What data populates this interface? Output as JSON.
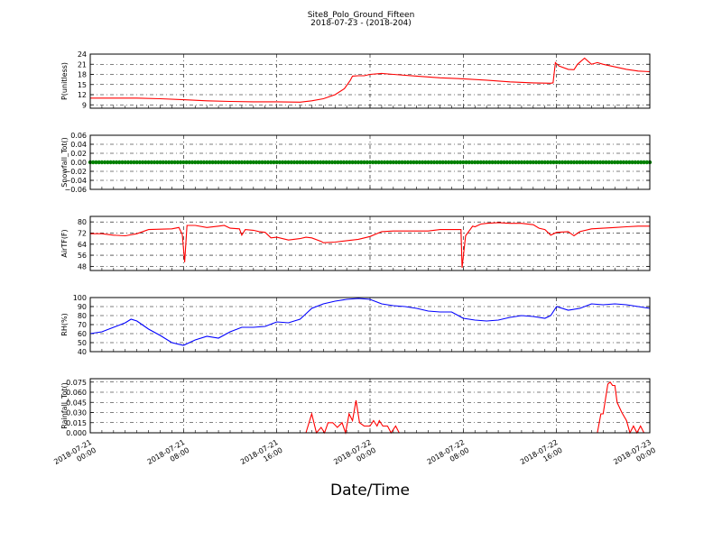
{
  "chart_data": {
    "title": "Site8_Polo_Ground_Fifteen",
    "subtitle": "2018-07-23 - (2018-204)",
    "xlabel": "Date/Time",
    "x_ticks": [
      {
        "h": 0,
        "label": [
          "2018-07-21",
          "00:00"
        ]
      },
      {
        "h": 8,
        "label": [
          "2018-07-21",
          "08:00"
        ]
      },
      {
        "h": 16,
        "label": [
          "2018-07-21",
          "16:00"
        ]
      },
      {
        "h": 24,
        "label": [
          "2018-07-22",
          "00:00"
        ]
      },
      {
        "h": 32,
        "label": [
          "2018-07-22",
          "08:00"
        ]
      },
      {
        "h": 40,
        "label": [
          "2018-07-22",
          "16:00"
        ]
      },
      {
        "h": 48,
        "label": [
          "2018-07-23",
          "00:00"
        ]
      }
    ],
    "x_range_hours": [
      0,
      48
    ],
    "grid": true,
    "panels": [
      {
        "type": "line",
        "ylabel": "P(unitless)",
        "color": "#ff0000",
        "ylim": [
          8,
          24
        ],
        "yticks": [
          9,
          12,
          15,
          18,
          21,
          24
        ],
        "points": [
          [
            0,
            11.0
          ],
          [
            2,
            11.0
          ],
          [
            4,
            11.0
          ],
          [
            6,
            10.8
          ],
          [
            8,
            10.5
          ],
          [
            10,
            10.2
          ],
          [
            12,
            10.0
          ],
          [
            14,
            9.9
          ],
          [
            16,
            9.9
          ],
          [
            18,
            9.8
          ],
          [
            19,
            10.2
          ],
          [
            20,
            10.8
          ],
          [
            21,
            12.0
          ],
          [
            21.8,
            13.8
          ],
          [
            22.3,
            16.2
          ],
          [
            22.5,
            17.5
          ],
          [
            23,
            17.6
          ],
          [
            23.5,
            17.6
          ],
          [
            24,
            18.0
          ],
          [
            25,
            18.3
          ],
          [
            26,
            18.0
          ],
          [
            28,
            17.5
          ],
          [
            30,
            17.0
          ],
          [
            32,
            16.7
          ],
          [
            34,
            16.3
          ],
          [
            36,
            15.8
          ],
          [
            38,
            15.5
          ],
          [
            39.5,
            15.4
          ],
          [
            39.7,
            15.5
          ],
          [
            39.9,
            21.5
          ],
          [
            40.2,
            20.5
          ],
          [
            41,
            19.5
          ],
          [
            41.5,
            19.4
          ],
          [
            41.8,
            21.0
          ],
          [
            42.4,
            22.8
          ],
          [
            43,
            21.0
          ],
          [
            43.5,
            21.5
          ],
          [
            44,
            21.0
          ],
          [
            46,
            19.5
          ],
          [
            47,
            19.0
          ],
          [
            48,
            18.8
          ]
        ]
      },
      {
        "type": "markers",
        "ylabel": "Snowfall_Tot()",
        "color": "#008000",
        "ylim": [
          -0.06,
          0.06
        ],
        "yticks": [
          "0.06",
          "0.04",
          "0.02",
          "0.00",
          "−0.02",
          "−0.04",
          "−0.06"
        ],
        "constant_value": 0.0
      },
      {
        "type": "line",
        "ylabel": "AirTF(F)",
        "color": "#ff0000",
        "ylim": [
          45,
          84
        ],
        "yticks": [
          48,
          56,
          64,
          72,
          80
        ],
        "points": [
          [
            0,
            71.5
          ],
          [
            1,
            71.5
          ],
          [
            2,
            70.5
          ],
          [
            3,
            70.0
          ],
          [
            4,
            71.5
          ],
          [
            5,
            74.5
          ],
          [
            6,
            74.8
          ],
          [
            7,
            75.0
          ],
          [
            7.6,
            76.0
          ],
          [
            7.9,
            71.0
          ],
          [
            8.1,
            51.0
          ],
          [
            8.3,
            77.5
          ],
          [
            9,
            77.5
          ],
          [
            10,
            76.0
          ],
          [
            11,
            77.0
          ],
          [
            11.5,
            77.5
          ],
          [
            12,
            75.5
          ],
          [
            12.8,
            75.0
          ],
          [
            13,
            70.5
          ],
          [
            13.3,
            74.5
          ],
          [
            14,
            74.0
          ],
          [
            14.5,
            73.0
          ],
          [
            15,
            72.5
          ],
          [
            15.5,
            68.5
          ],
          [
            16,
            69.0
          ],
          [
            17,
            67.0
          ],
          [
            18,
            68.0
          ],
          [
            18.5,
            69.0
          ],
          [
            19,
            68.5
          ],
          [
            19.8,
            66.0
          ],
          [
            20,
            65.0
          ],
          [
            21,
            65.5
          ],
          [
            22,
            66.5
          ],
          [
            23,
            67.5
          ],
          [
            24,
            69.5
          ],
          [
            25,
            73.0
          ],
          [
            26,
            73.5
          ],
          [
            27,
            73.5
          ],
          [
            28,
            73.5
          ],
          [
            29,
            73.5
          ],
          [
            30,
            74.5
          ],
          [
            31,
            74.5
          ],
          [
            31.8,
            74.5
          ],
          [
            31.9,
            47.0
          ],
          [
            32.2,
            70.0
          ],
          [
            32.8,
            77.0
          ],
          [
            33,
            76.5
          ],
          [
            33.5,
            78.5
          ],
          [
            34,
            79.0
          ],
          [
            35,
            79.5
          ],
          [
            36,
            79.0
          ],
          [
            37,
            79.0
          ],
          [
            38,
            78.0
          ],
          [
            38.5,
            75.5
          ],
          [
            39,
            74.5
          ],
          [
            39.5,
            70.5
          ],
          [
            40,
            72.5
          ],
          [
            41,
            73.0
          ],
          [
            41.5,
            70.0
          ],
          [
            42,
            73.0
          ],
          [
            43,
            75.0
          ],
          [
            44,
            75.5
          ],
          [
            45,
            76.0
          ],
          [
            46,
            76.5
          ],
          [
            47,
            77.0
          ],
          [
            48,
            77.0
          ]
        ]
      },
      {
        "type": "line",
        "ylabel": "RH(%)",
        "color": "#0000ff",
        "ylim": [
          40,
          100
        ],
        "yticks": [
          40,
          50,
          60,
          70,
          80,
          90,
          100
        ],
        "points": [
          [
            0,
            60
          ],
          [
            1,
            62
          ],
          [
            2,
            67
          ],
          [
            3,
            72
          ],
          [
            3.5,
            76
          ],
          [
            4,
            74
          ],
          [
            5,
            65
          ],
          [
            6,
            58
          ],
          [
            7,
            50
          ],
          [
            8,
            47
          ],
          [
            9,
            53
          ],
          [
            10,
            57
          ],
          [
            11,
            55
          ],
          [
            12,
            62
          ],
          [
            13,
            67
          ],
          [
            14,
            67
          ],
          [
            15,
            68
          ],
          [
            16,
            73
          ],
          [
            17,
            72
          ],
          [
            18,
            76
          ],
          [
            18.5,
            82
          ],
          [
            19,
            88
          ],
          [
            20,
            93
          ],
          [
            21,
            96
          ],
          [
            22,
            98
          ],
          [
            23,
            99
          ],
          [
            24,
            98
          ],
          [
            25,
            93
          ],
          [
            26,
            91
          ],
          [
            27,
            90
          ],
          [
            28,
            88
          ],
          [
            29,
            85
          ],
          [
            30,
            84
          ],
          [
            31,
            84
          ],
          [
            32,
            77
          ],
          [
            33,
            75
          ],
          [
            34,
            74
          ],
          [
            35,
            75
          ],
          [
            36,
            78
          ],
          [
            37,
            80
          ],
          [
            38,
            79
          ],
          [
            39,
            77
          ],
          [
            39.5,
            80
          ],
          [
            40,
            90
          ],
          [
            41,
            86
          ],
          [
            42,
            88
          ],
          [
            43,
            93
          ],
          [
            44,
            92
          ],
          [
            45,
            93
          ],
          [
            46,
            92
          ],
          [
            47,
            90
          ],
          [
            48,
            88
          ]
        ]
      },
      {
        "type": "line",
        "ylabel": "Rainfall_Tot()",
        "color": "#ff0000",
        "ylim": [
          0,
          0.08
        ],
        "yticks": [
          "0.000",
          "0.015",
          "0.030",
          "0.045",
          "0.060",
          "0.075"
        ],
        "points": [
          [
            0,
            0
          ],
          [
            18.5,
            0
          ],
          [
            19.0,
            0.028
          ],
          [
            19.4,
            0
          ],
          [
            19.8,
            0.008
          ],
          [
            20.1,
            0
          ],
          [
            20.4,
            0.015
          ],
          [
            20.8,
            0.015
          ],
          [
            21.2,
            0.008
          ],
          [
            21.6,
            0.015
          ],
          [
            21.9,
            0
          ],
          [
            22.2,
            0.028
          ],
          [
            22.5,
            0.018
          ],
          [
            22.8,
            0.048
          ],
          [
            23.1,
            0.015
          ],
          [
            23.5,
            0.01
          ],
          [
            24,
            0.01
          ],
          [
            24.3,
            0.018
          ],
          [
            24.6,
            0.01
          ],
          [
            24.8,
            0.018
          ],
          [
            25.1,
            0.01
          ],
          [
            25.5,
            0.01
          ],
          [
            25.8,
            0
          ],
          [
            26.2,
            0.01
          ],
          [
            26.5,
            0
          ],
          [
            43.5,
            0
          ],
          [
            43.8,
            0.028
          ],
          [
            44,
            0.028
          ],
          [
            44.4,
            0.072
          ],
          [
            44.6,
            0.075
          ],
          [
            44.8,
            0.07
          ],
          [
            45,
            0.07
          ],
          [
            45.2,
            0.045
          ],
          [
            45.6,
            0.03
          ],
          [
            46,
            0.018
          ],
          [
            46.3,
            0
          ],
          [
            46.6,
            0.01
          ],
          [
            46.9,
            0
          ],
          [
            47.2,
            0.01
          ],
          [
            47.5,
            0
          ],
          [
            48,
            0
          ]
        ]
      }
    ]
  }
}
